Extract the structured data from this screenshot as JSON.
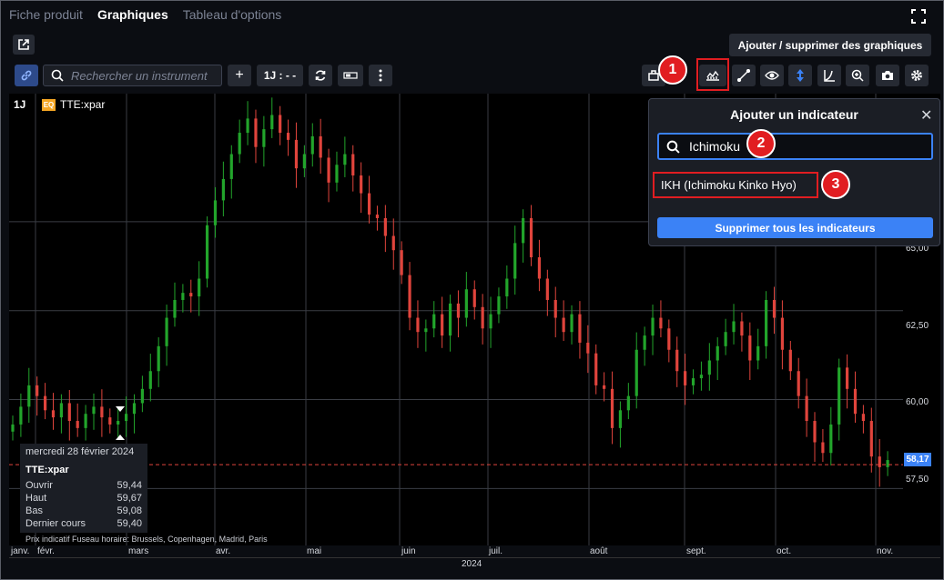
{
  "tabs": [
    "Fiche produit",
    "Graphiques",
    "Tableau d'options"
  ],
  "toolbar": {
    "add_remove_label": "Ajouter / supprimer des graphiques",
    "search_placeholder": "Rechercher un instrument",
    "plus_label": "+",
    "period_label": "1J : - -"
  },
  "chart": {
    "timeframe": "1J",
    "instrument_badge": "EQ",
    "instrument": "TTE:xpar",
    "current_price": "58,17",
    "price_ticks": [
      "65,00",
      "62,50",
      "60,00",
      "57,50"
    ],
    "months": [
      "janv.",
      "févr.",
      "mars",
      "avr.",
      "mai",
      "juin",
      "juil.",
      "août",
      "sept.",
      "oct.",
      "nov."
    ],
    "year": "2024",
    "colors": {
      "up": "#22a52b",
      "down": "#e0443c",
      "grid": "#3a3d44",
      "accent": "#3b82f6"
    }
  },
  "tooltip": {
    "date": "mercredi 28 février 2024",
    "instrument": "TTE:xpar",
    "rows": [
      {
        "label": "Ouvrir",
        "value": "59,44"
      },
      {
        "label": "Haut",
        "value": "59,67"
      },
      {
        "label": "Bas",
        "value": "59,08"
      },
      {
        "label": "Dernier cours",
        "value": "59,40"
      }
    ]
  },
  "footer": {
    "note": "Prix indicatif     Fuseau horaire: Brussels, Copenhagen, Madrid, Paris"
  },
  "indicator_panel": {
    "title": "Ajouter un indicateur",
    "search_value": "Ichimoku",
    "result": "IKH (Ichimoku Kinko Hyo)",
    "remove_all_label": "Supprimer tous les indicateurs"
  },
  "badges": [
    "1",
    "2",
    "3"
  ],
  "chart_data": {
    "type": "candlestick",
    "ylim": [
      55.9,
      68.6
    ],
    "x_months": [
      "janv.",
      "févr.",
      "mars",
      "avr.",
      "mai",
      "juin",
      "juil.",
      "août",
      "sept.",
      "oct.",
      "nov."
    ],
    "close_series": [
      59.3,
      59.8,
      60.4,
      60.1,
      59.7,
      59.5,
      59.9,
      59.4,
      59.2,
      59.6,
      59.8,
      59.5,
      59.3,
      59.4,
      59.6,
      59.9,
      60.3,
      60.8,
      61.5,
      62.3,
      62.8,
      63.0,
      62.9,
      63.4,
      64.9,
      65.6,
      66.2,
      66.9,
      67.5,
      67.9,
      67.1,
      67.6,
      68.0,
      67.5,
      67.3,
      66.5,
      66.9,
      67.4,
      66.8,
      66.1,
      66.6,
      66.9,
      66.3,
      65.8,
      65.2,
      65.1,
      64.6,
      64.2,
      63.5,
      62.3,
      61.9,
      62.0,
      62.4,
      61.8,
      62.7,
      62.3,
      63.1,
      62.6,
      62.0,
      62.4,
      62.9,
      63.4,
      64.4,
      65.1,
      64.0,
      63.4,
      62.8,
      62.3,
      61.9,
      62.4,
      61.6,
      61.3,
      60.4,
      60.3,
      59.2,
      59.7,
      60.1,
      61.4,
      61.8,
      62.3,
      62.0,
      61.4,
      60.8,
      60.4,
      60.6,
      60.7,
      61.1,
      61.5,
      61.9,
      62.2,
      61.8,
      61.1,
      61.5,
      62.8,
      62.3,
      61.4,
      60.8,
      60.1,
      59.4,
      58.8,
      58.5,
      59.3,
      60.9,
      60.3,
      59.6,
      59.4,
      58.4,
      58.1,
      58.3
    ]
  }
}
